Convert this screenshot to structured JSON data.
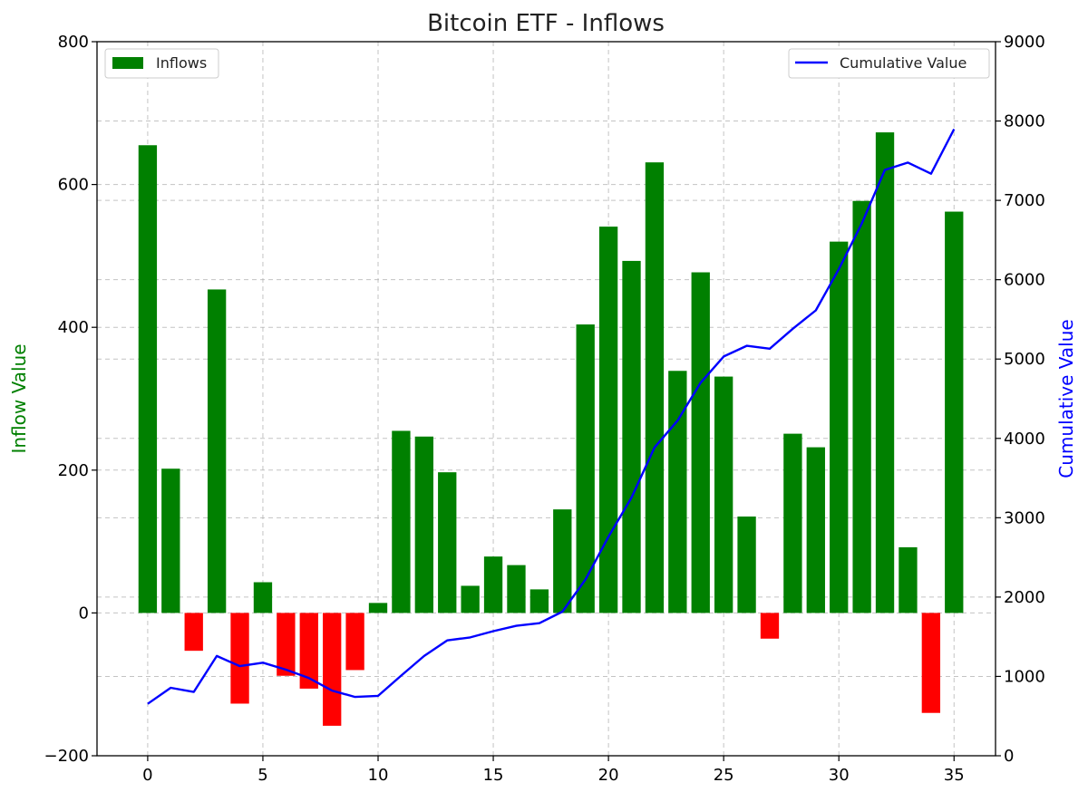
{
  "chart_data": {
    "type": "bar",
    "title": "Bitcoin ETF - Inflows",
    "xlabel": "",
    "ylabel": "Inflow Value",
    "y2label": "Cumulative Value",
    "xlim": [
      -2.2,
      36.8
    ],
    "ylim": [
      -200,
      800
    ],
    "y2lim": [
      0,
      9000
    ],
    "xticks": [
      0,
      5,
      10,
      15,
      20,
      25,
      30,
      35
    ],
    "yticks": [
      -200,
      0,
      200,
      400,
      600,
      800
    ],
    "y2ticks": [
      0,
      1000,
      2000,
      3000,
      4000,
      5000,
      6000,
      7000,
      8000,
      9000
    ],
    "grid": true,
    "x": [
      0,
      1,
      2,
      3,
      4,
      5,
      6,
      7,
      8,
      9,
      10,
      11,
      12,
      13,
      14,
      15,
      16,
      17,
      18,
      19,
      20,
      21,
      22,
      23,
      24,
      25,
      26,
      27,
      28,
      29,
      30,
      31,
      32,
      33,
      34,
      35
    ],
    "series": [
      {
        "name": "Inflows",
        "kind": "bar",
        "axis": "left",
        "values": [
          655,
          202,
          -53,
          453,
          -127,
          43,
          -88,
          -106,
          -158,
          -80,
          14,
          255,
          247,
          197,
          38,
          79,
          67,
          33,
          145,
          404,
          541,
          493,
          631,
          339,
          477,
          331,
          135,
          -36,
          251,
          232,
          520,
          577,
          673,
          92,
          -140,
          562
        ]
      },
      {
        "name": "Cumulative Value",
        "kind": "line",
        "axis": "right",
        "values": [
          655,
          857,
          804,
          1257,
          1130,
          1173,
          1085,
          979,
          821,
          741,
          755,
          1010,
          1257,
          1454,
          1492,
          1571,
          1638,
          1671,
          1816,
          2220,
          2761,
          3254,
          3885,
          4224,
          4701,
          5032,
          5167,
          5131,
          5382,
          5614,
          6134,
          6711,
          7384,
          7476,
          7336,
          7898
        ]
      }
    ],
    "legend": [
      {
        "label": "Inflows",
        "position": "top-left"
      },
      {
        "label": "Cumulative Value",
        "position": "top-right"
      }
    ],
    "colors": {
      "positive_bar": "#008000",
      "negative_bar": "#ff0000",
      "line": "#0000ff",
      "left_axis_label": "#008000",
      "right_axis_label": "#0000ff"
    }
  }
}
